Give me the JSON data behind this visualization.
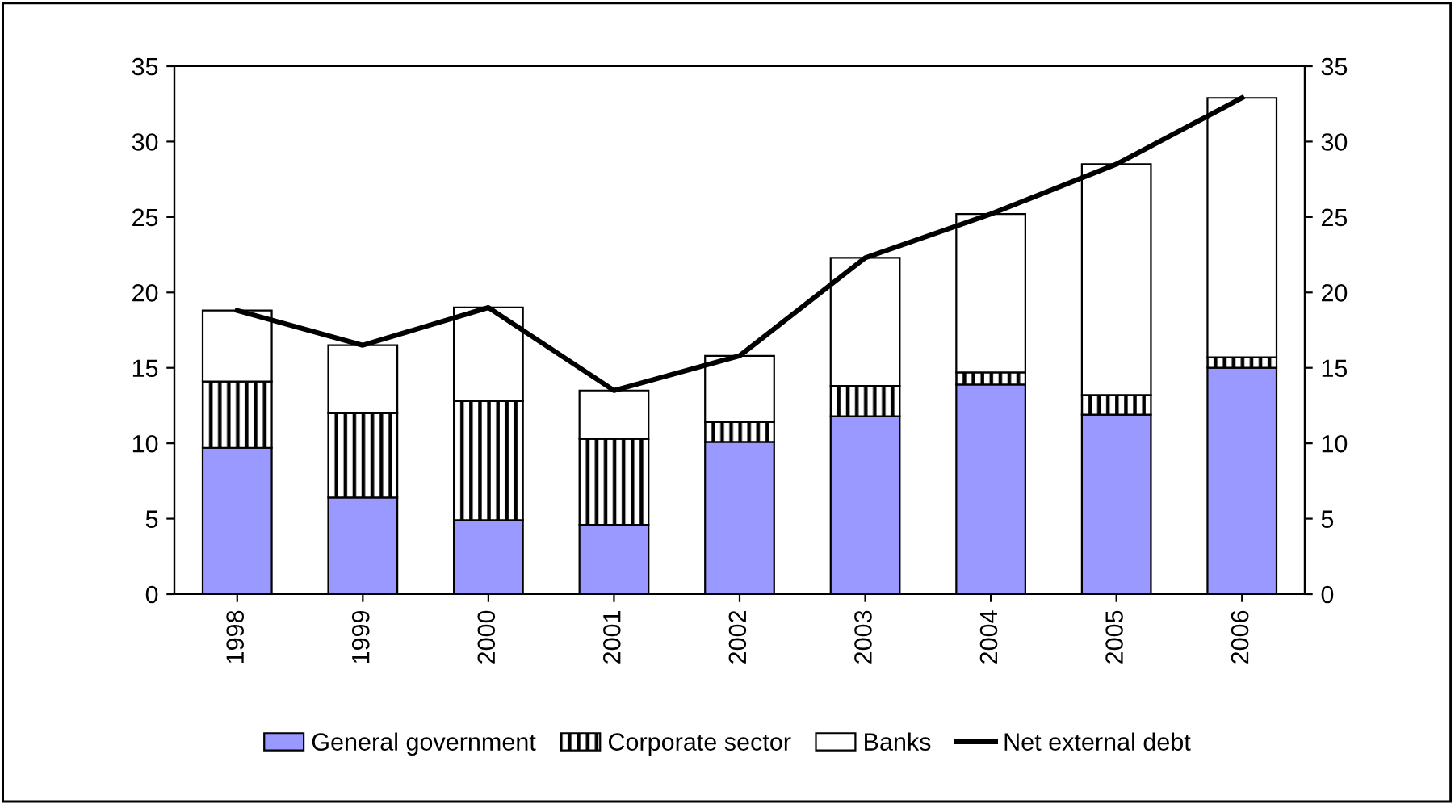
{
  "chart_data": {
    "type": "bar",
    "stacked": true,
    "categories": [
      "1998",
      "1999",
      "2000",
      "2001",
      "2002",
      "2003",
      "2004",
      "2005",
      "2006"
    ],
    "series": [
      {
        "name": "General government",
        "color": "#9999ff",
        "values": [
          9.7,
          6.4,
          4.9,
          4.6,
          10.1,
          11.8,
          13.9,
          11.9,
          15.0
        ]
      },
      {
        "name": "Corporate sector",
        "color": "#000000",
        "values": [
          4.4,
          5.6,
          7.9,
          5.7,
          1.3,
          2.0,
          0.8,
          1.3,
          0.7
        ]
      },
      {
        "name": "Banks",
        "color": "#ffffff",
        "values": [
          4.7,
          4.5,
          6.2,
          3.2,
          4.4,
          8.5,
          10.5,
          15.3,
          17.2
        ]
      },
      {
        "name": "Net external debt",
        "type": "line",
        "color": "#000000",
        "values": [
          18.8,
          16.5,
          19.0,
          13.5,
          15.8,
          22.3,
          25.2,
          28.5,
          32.9
        ]
      }
    ],
    "ylim": [
      0,
      35
    ],
    "yticks": [
      0,
      5,
      10,
      15,
      20,
      25,
      30,
      35
    ],
    "y2lim": [
      0,
      35
    ],
    "y2ticks": [
      0,
      5,
      10,
      15,
      20,
      25,
      30,
      35
    ],
    "legend": "bottom",
    "grid": false,
    "marker": "none"
  }
}
